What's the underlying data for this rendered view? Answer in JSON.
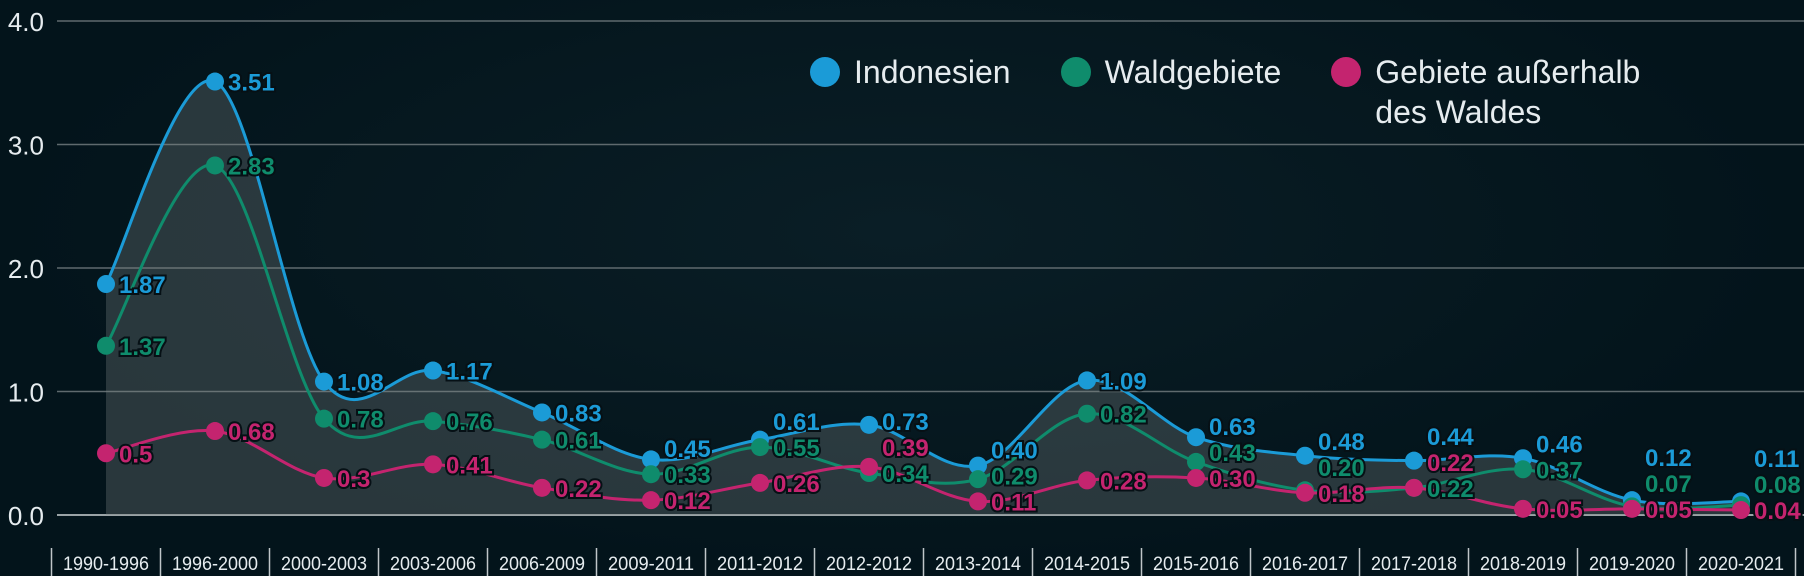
{
  "chart_data": {
    "type": "line",
    "title": "",
    "xlabel": "",
    "ylabel": "",
    "ylim": [
      0,
      4.0
    ],
    "yticks": [
      "0.0",
      "1.0",
      "2.0",
      "3.0",
      "4.0"
    ],
    "grid": true,
    "smooth": true,
    "legend_position": "top-right",
    "categories": [
      "1990-1996",
      "1996-2000",
      "2000-2003",
      "2003-2006",
      "2006-2009",
      "2009-2011",
      "2011-2012",
      "2012-2012",
      "2013-2014",
      "2014-2015",
      "2015-2016",
      "2016-2017",
      "2017-2018",
      "2018-2019",
      "2019-2020",
      "2020-2021"
    ],
    "series": [
      {
        "name": "Indonesien",
        "color": "#1b9bd7",
        "values": [
          1.87,
          3.51,
          1.08,
          1.17,
          0.83,
          0.45,
          0.61,
          0.73,
          0.4,
          1.09,
          0.63,
          0.48,
          0.44,
          0.46,
          0.12,
          0.11
        ],
        "labels": [
          "1.87",
          "3.51",
          "1.08",
          "1.17",
          "0.83",
          "0.45",
          "0.61",
          "0.73",
          "0.40",
          "1.09",
          "0.63",
          "0.48",
          "0.44",
          "0.46",
          "0.12",
          "0.11"
        ]
      },
      {
        "name": "Waldgebiete",
        "color": "#0f8c6c",
        "values": [
          1.37,
          2.83,
          0.78,
          0.76,
          0.61,
          0.33,
          0.55,
          0.34,
          0.29,
          0.82,
          0.43,
          0.2,
          0.22,
          0.37,
          0.07,
          0.08
        ],
        "labels": [
          "1.37",
          "2.83",
          "0.78",
          "0.76",
          "0.61",
          "0.33",
          "0.55",
          "0.34",
          "0.29",
          "0.82",
          "0.43",
          "0.20",
          "0.22",
          "0.37",
          "0.07",
          "0.08"
        ]
      },
      {
        "name": "Gebiete außerhalb\ndes Waldes",
        "color": "#c4246f",
        "values": [
          0.5,
          0.68,
          0.3,
          0.41,
          0.22,
          0.12,
          0.26,
          0.39,
          0.11,
          0.28,
          0.3,
          0.18,
          0.22,
          0.05,
          0.05,
          0.04
        ],
        "labels": [
          "0.5",
          "0.68",
          "0.3",
          "0.41",
          "0.22",
          "0.12",
          "0.26",
          "0.39",
          "0.11",
          "0.28",
          "0.30",
          "0.18",
          "0.22",
          "0.05",
          "0.05",
          "0.04"
        ]
      }
    ]
  }
}
